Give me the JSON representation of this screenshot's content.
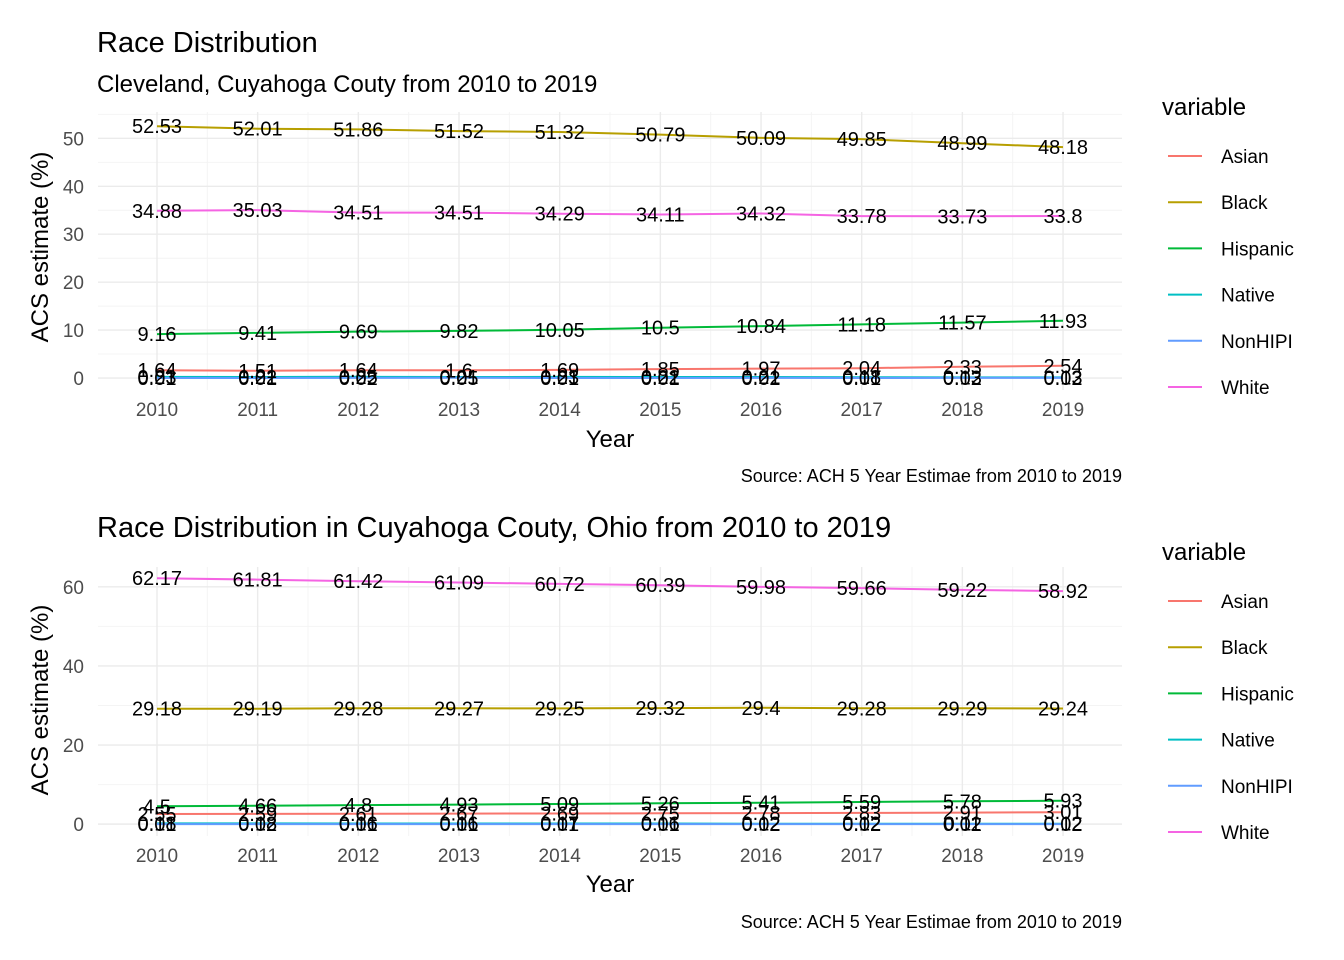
{
  "chart_data": [
    {
      "type": "line",
      "title": "Race Distribution",
      "subtitle": "Cleveland, Cuyahoga Couty from 2010 to 2019",
      "xlabel": "Year",
      "ylabel": "ACS estimate (%)",
      "caption": "Source: ACH 5 Year Estimae from 2010 to 2019",
      "legend_title": "variable",
      "legend_position": "right",
      "grid": true,
      "x": [
        2010,
        2011,
        2012,
        2013,
        2014,
        2015,
        2016,
        2017,
        2018,
        2019
      ],
      "x_ticks": [
        "2010",
        "2011",
        "2012",
        "2013",
        "2014",
        "2015",
        "2016",
        "2017",
        "2018",
        "2019"
      ],
      "ylim": [
        -2.5,
        55.5
      ],
      "y_ticks": [
        0,
        10,
        20,
        30,
        40,
        50
      ],
      "series": [
        {
          "name": "Asian",
          "color": "#F8766D",
          "values": [
            1.64,
            1.51,
            1.64,
            1.6,
            1.69,
            1.85,
            1.97,
            2.04,
            2.33,
            2.54
          ],
          "labels": [
            "1.64",
            "1.51",
            "1.64",
            "1.6",
            "1.69",
            "1.85",
            "1.97",
            "2.04",
            "2.33",
            "2.54"
          ]
        },
        {
          "name": "Black",
          "color": "#B79F00",
          "values": [
            52.53,
            52.01,
            51.86,
            51.52,
            51.32,
            50.79,
            50.09,
            49.85,
            48.99,
            48.18
          ],
          "labels": [
            "52.53",
            "52.01",
            "51.86",
            "51.52",
            "51.32",
            "50.79",
            "50.09",
            "49.85",
            "48.99",
            "48.18"
          ]
        },
        {
          "name": "Hispanic",
          "color": "#00BA38",
          "values": [
            9.16,
            9.41,
            9.69,
            9.82,
            10.05,
            10.5,
            10.84,
            11.18,
            11.57,
            11.93
          ],
          "labels": [
            "9.16",
            "9.41",
            "9.69",
            "9.82",
            "10.05",
            "10.5",
            "10.84",
            "11.18",
            "11.57",
            "11.93"
          ]
        },
        {
          "name": "Native",
          "color": "#00BFC4",
          "values": [
            0.23,
            0.22,
            0.25,
            0.21,
            0.23,
            0.22,
            0.21,
            0.18,
            0.13,
            0.13
          ],
          "labels": [
            "0.23",
            "0.22",
            "0.25",
            "0.21",
            "0.23",
            "0.22",
            "0.21",
            "0.18",
            "0.13",
            "0.13"
          ]
        },
        {
          "name": "NonHIPI",
          "color": "#619CFF",
          "values": [
            0.01,
            0.01,
            0.02,
            0.05,
            0.01,
            0.01,
            0.02,
            0.01,
            0.02,
            0.02
          ],
          "labels": [
            "0.01",
            "0.01",
            "0.02",
            "0.05",
            "0.01",
            "0.01",
            "0.02",
            "0.01",
            "0.02",
            "0.02"
          ]
        },
        {
          "name": "White",
          "color": "#F564E3",
          "values": [
            34.88,
            35.03,
            34.51,
            34.51,
            34.29,
            34.11,
            34.32,
            33.78,
            33.73,
            33.8
          ],
          "labels": [
            "34.88",
            "35.03",
            "34.51",
            "34.51",
            "34.29",
            "34.11",
            "34.32",
            "33.78",
            "33.73",
            "33.8"
          ]
        }
      ]
    },
    {
      "type": "line",
      "title": "Race Distribution in Cuyahoga Couty, Ohio from 2010 to 2019",
      "xlabel": "Year",
      "ylabel": "ACS estimate (%)",
      "caption": "Source: ACH 5 Year Estimae from 2010 to 2019",
      "legend_title": "variable",
      "legend_position": "right",
      "grid": true,
      "x": [
        2010,
        2011,
        2012,
        2013,
        2014,
        2015,
        2016,
        2017,
        2018,
        2019
      ],
      "x_ticks": [
        "2010",
        "2011",
        "2012",
        "2013",
        "2014",
        "2015",
        "2016",
        "2017",
        "2018",
        "2019"
      ],
      "ylim": [
        -3,
        65
      ],
      "y_ticks": [
        0,
        20,
        40,
        60
      ],
      "series": [
        {
          "name": "Asian",
          "color": "#F8766D",
          "values": [
            2.55,
            2.59,
            2.61,
            2.67,
            2.69,
            2.75,
            2.78,
            2.83,
            2.91,
            3.01
          ],
          "labels": [
            "2.55",
            "2.59",
            "2.61",
            "2.67",
            "2.69",
            "2.75",
            "2.78",
            "2.83",
            "2.91",
            "3.01"
          ]
        },
        {
          "name": "Black",
          "color": "#B79F00",
          "values": [
            29.18,
            29.19,
            29.28,
            29.27,
            29.25,
            29.32,
            29.4,
            29.28,
            29.29,
            29.24
          ],
          "labels": [
            "29.18",
            "29.19",
            "29.28",
            "29.27",
            "29.25",
            "29.32",
            "29.4",
            "29.28",
            "29.29",
            "29.24"
          ]
        },
        {
          "name": "Hispanic",
          "color": "#00BA38",
          "values": [
            4.5,
            4.66,
            4.8,
            4.93,
            5.09,
            5.26,
            5.41,
            5.59,
            5.78,
            5.93
          ],
          "labels": [
            "4.5",
            "4.66",
            "4.8",
            "4.93",
            "5.09",
            "5.26",
            "5.41",
            "5.59",
            "5.78",
            "5.93"
          ]
        },
        {
          "name": "Native",
          "color": "#00BFC4",
          "values": [
            0.18,
            0.18,
            0.16,
            0.16,
            0.17,
            0.16,
            0.12,
            0.12,
            0.11,
            0.12
          ],
          "labels": [
            "0.18",
            "0.18",
            "0.16",
            "0.16",
            "0.17",
            "0.16",
            "0.12",
            "0.12",
            "0.11",
            "0.12"
          ]
        },
        {
          "name": "NonHIPI",
          "color": "#619CFF",
          "values": [
            0.01,
            0.02,
            0.01,
            0.01,
            0.01,
            0.01,
            0.02,
            0.02,
            0.02,
            0.02
          ],
          "labels": [
            "0.01",
            "0.02",
            "0.01",
            "0.01",
            "0.01",
            "0.01",
            "0.02",
            "0.02",
            "0.02",
            "0.02"
          ]
        },
        {
          "name": "White",
          "color": "#F564E3",
          "values": [
            62.17,
            61.81,
            61.42,
            61.09,
            60.72,
            60.39,
            59.98,
            59.66,
            59.22,
            58.92
          ],
          "labels": [
            "62.17",
            "61.81",
            "61.42",
            "61.09",
            "60.72",
            "60.39",
            "59.98",
            "59.66",
            "59.22",
            "58.92"
          ]
        }
      ]
    }
  ]
}
